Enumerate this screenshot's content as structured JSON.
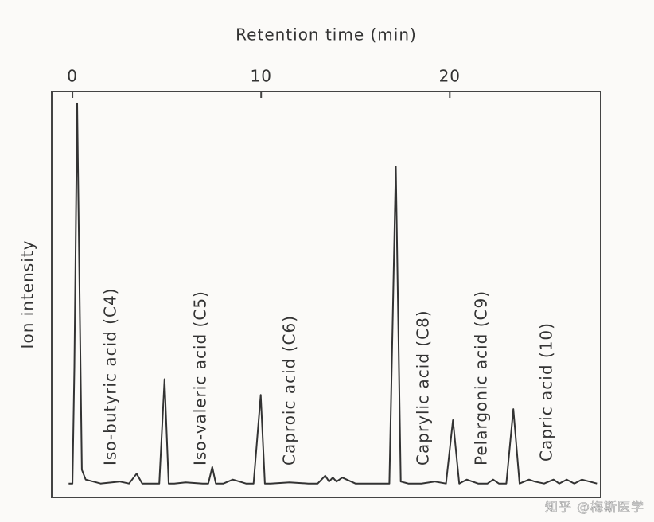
{
  "chart_data": {
    "type": "line",
    "x_label": "Retention time (min)",
    "y_label": "Ion intensity",
    "x": [
      -0.2,
      0,
      0.1,
      0.25,
      0.4,
      0.5,
      0.7,
      1.5,
      2.5,
      3.0,
      3.4,
      3.7,
      4.2,
      4.6,
      4.88,
      5.1,
      5.4,
      6,
      6.9,
      7.2,
      7.41,
      7.6,
      8,
      8.5,
      9.2,
      9.6,
      9.98,
      10.2,
      10.5,
      11.5,
      12.5,
      13.0,
      13.4,
      13.6,
      13.8,
      14.0,
      14.3,
      15,
      16,
      16.8,
      17.14,
      17.4,
      17.8,
      18.5,
      19.2,
      19.8,
      20.17,
      20.5,
      20.9,
      21.5,
      22.0,
      22.3,
      22.6,
      23.0,
      23.37,
      23.7,
      24.2,
      24.5,
      25,
      25.5,
      25.8,
      26.2,
      26.6,
      27,
      27.8
    ],
    "values": [
      0.5,
      0.5,
      30,
      97,
      40,
      4,
      1.5,
      0.5,
      1,
      0.5,
      3,
      0.5,
      0.5,
      0.5,
      27,
      0.5,
      0.5,
      0.8,
      0.5,
      0.5,
      4.7,
      0.5,
      0.5,
      1.5,
      0.5,
      0.5,
      23,
      0.5,
      0.5,
      0.8,
      0.5,
      0.5,
      2.5,
      1,
      2,
      1,
      2,
      0.5,
      0.5,
      0.5,
      81,
      1,
      0.5,
      0.5,
      1,
      0.5,
      16.6,
      0.5,
      1.5,
      0.5,
      0.5,
      1.5,
      0.5,
      0.5,
      19.4,
      0.5,
      1.5,
      1,
      0.5,
      1.5,
      0.5,
      1.5,
      0.5,
      1.5,
      0.5
    ],
    "color": "#333333",
    "xlim": [
      -1.1,
      28
    ],
    "xticks": [
      0,
      10,
      20
    ],
    "ylim": [
      -3,
      100
    ],
    "annotations": [
      "Iso-butyric acid (C4)",
      "Iso-valeric acid (C5)",
      "Caproic acid (C6)",
      "Caprylic acid (C8)",
      "Pelargonic acid (C9)",
      "Capric acid (10)"
    ],
    "watermark": "知乎 @梅斯医学"
  }
}
